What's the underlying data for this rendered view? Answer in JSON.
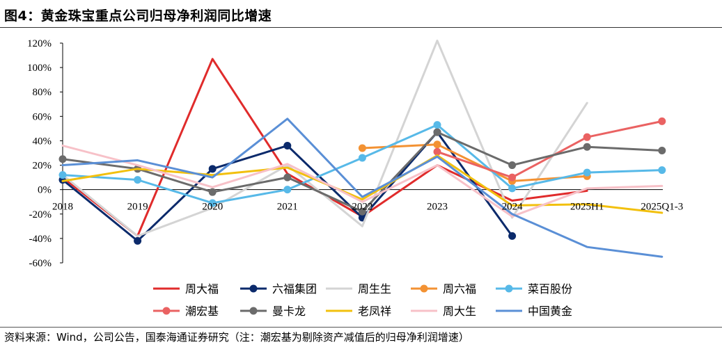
{
  "figure": {
    "title": "图4：黄金珠宝重点公司归母净利润同比增速",
    "source": "资料来源：Wind，公司公告，国泰海通证券研究（注：潮宏基为剔除资产减值后的归母净利润增速）"
  },
  "chart_data": {
    "type": "line",
    "title": "",
    "xlabel": "",
    "ylabel": "",
    "categories": [
      "2018",
      "2019",
      "2020",
      "2021",
      "2022",
      "2023",
      "2024",
      "2025H1",
      "2025Q1-3"
    ],
    "ylim": [
      -60,
      120
    ],
    "yticks": [
      -60,
      -40,
      -20,
      0,
      20,
      40,
      60,
      80,
      100,
      120
    ],
    "ytick_labels": [
      "-60%",
      "-40%",
      "-20%",
      "0%",
      "20%",
      "40%",
      "60%",
      "80%",
      "100%",
      "120%"
    ],
    "grid": false,
    "legend_position": "bottom",
    "series": [
      {
        "name": "周大福",
        "color": "#e02b2b",
        "marker": false,
        "values": [
          10,
          -38,
          107,
          13,
          -22,
          20,
          -9,
          -1,
          null
        ]
      },
      {
        "name": "六福集团",
        "color": "#0b2a6b",
        "marker": true,
        "values": [
          8,
          -42,
          17,
          36,
          -23,
          47,
          -38,
          null,
          null
        ]
      },
      {
        "name": "周生生",
        "color": "#d4d4d4",
        "marker": false,
        "values": [
          12,
          -38,
          -15,
          20,
          -30,
          122,
          -23,
          71,
          null
        ]
      },
      {
        "name": "周六福",
        "color": "#f39233",
        "marker": true,
        "values": [
          null,
          null,
          null,
          null,
          34,
          37,
          7,
          11,
          null
        ]
      },
      {
        "name": "菜百股份",
        "color": "#57b9e8",
        "marker": true,
        "values": [
          12,
          8,
          -11,
          0,
          26,
          53,
          1,
          14,
          16
        ]
      },
      {
        "name": "潮宏基",
        "color": "#ea6262",
        "marker": true,
        "values": [
          null,
          null,
          null,
          null,
          null,
          31,
          10,
          43,
          56
        ]
      },
      {
        "name": "曼卡龙",
        "color": "#6b6b6b",
        "marker": true,
        "values": [
          25,
          17,
          -2,
          10,
          -18,
          47,
          20,
          35,
          32
        ]
      },
      {
        "name": "老凤祥",
        "color": "#f2c00e",
        "marker": false,
        "values": [
          7,
          17,
          12,
          18,
          -8,
          28,
          -13,
          -12,
          -19
        ]
      },
      {
        "name": "周大生",
        "color": "#f7c1c8",
        "marker": false,
        "values": [
          36,
          20,
          2,
          21,
          -10,
          20,
          -22,
          1,
          3
        ]
      },
      {
        "name": "中国黄金",
        "color": "#5a8fd6",
        "marker": false,
        "values": [
          20,
          24,
          10,
          58,
          -6,
          27,
          -20,
          -47,
          -55
        ]
      }
    ]
  }
}
